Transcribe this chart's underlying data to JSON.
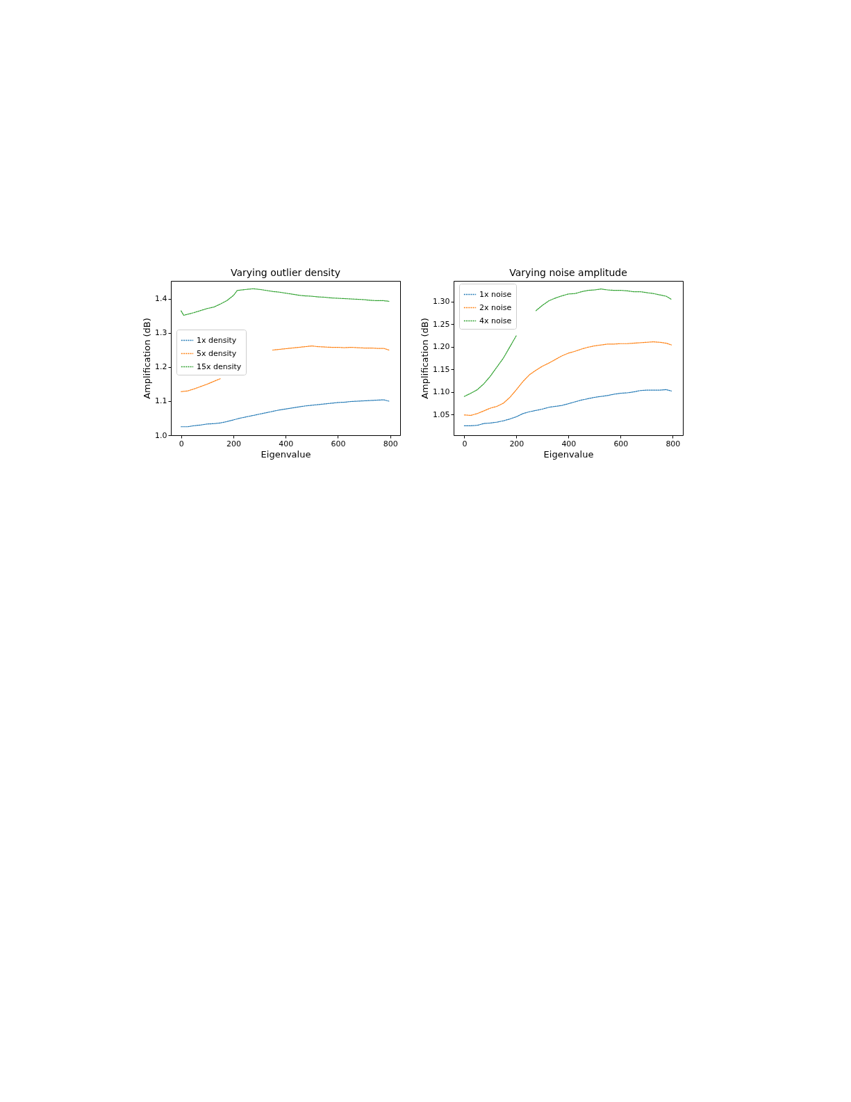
{
  "chart_data": [
    {
      "type": "line",
      "title": "Varying outlier density",
      "xlabel": "Eigenvalue",
      "ylabel": "Amplification (dB)",
      "xlim": [
        -39,
        838
      ],
      "ylim": [
        1.0,
        1.453
      ],
      "xticks": [
        0,
        200,
        400,
        600,
        800
      ],
      "yticks": [
        {
          "value": 1.0,
          "label": "1.0"
        },
        1.1,
        1.2,
        1.3,
        1.4
      ],
      "grid": false,
      "legend": "left",
      "marker": "none",
      "line_style": "dotted",
      "series": [
        {
          "name": "1x density",
          "color": "#1f77b4",
          "x": [
            0,
            25,
            50,
            75,
            100,
            125,
            150,
            175,
            200,
            225,
            250,
            275,
            300,
            325,
            350,
            375,
            400,
            425,
            450,
            475,
            500,
            525,
            550,
            575,
            600,
            625,
            650,
            675,
            700,
            725,
            750,
            775,
            795
          ],
          "values": [
            1.025,
            1.025,
            1.028,
            1.03,
            1.033,
            1.034,
            1.036,
            1.04,
            1.045,
            1.05,
            1.054,
            1.058,
            1.062,
            1.066,
            1.07,
            1.074,
            1.077,
            1.08,
            1.083,
            1.086,
            1.088,
            1.09,
            1.092,
            1.094,
            1.096,
            1.097,
            1.099,
            1.1,
            1.101,
            1.102,
            1.103,
            1.104,
            1.1
          ]
        },
        {
          "name": "5x density",
          "color": "#ff7f0e",
          "x": [
            0,
            25,
            50,
            75,
            100,
            125,
            150,
            175,
            200,
            225,
            250,
            275,
            300,
            325,
            350,
            375,
            400,
            425,
            450,
            475,
            500,
            525,
            550,
            575,
            600,
            625,
            650,
            675,
            700,
            725,
            750,
            775,
            795
          ],
          "values": [
            1.128,
            1.13,
            1.136,
            1.143,
            1.15,
            1.158,
            1.166,
            null,
            null,
            null,
            null,
            null,
            null,
            null,
            1.25,
            1.252,
            1.254,
            1.256,
            1.258,
            1.26,
            1.262,
            1.26,
            1.259,
            1.258,
            1.258,
            1.257,
            1.258,
            1.257,
            1.256,
            1.256,
            1.255,
            1.255,
            1.25
          ]
        },
        {
          "name": "15x density",
          "color": "#2ca02c",
          "x": [
            0,
            10,
            25,
            50,
            75,
            100,
            125,
            150,
            175,
            200,
            215,
            250,
            275,
            300,
            325,
            350,
            375,
            400,
            425,
            450,
            475,
            500,
            525,
            550,
            575,
            600,
            625,
            650,
            675,
            700,
            725,
            750,
            775,
            795
          ],
          "values": [
            1.365,
            1.352,
            1.355,
            1.36,
            1.366,
            1.372,
            1.376,
            1.385,
            1.395,
            1.41,
            1.425,
            1.428,
            1.43,
            1.428,
            1.425,
            1.422,
            1.42,
            1.417,
            1.414,
            1.411,
            1.409,
            1.408,
            1.406,
            1.405,
            1.403,
            1.402,
            1.401,
            1.4,
            1.399,
            1.398,
            1.396,
            1.395,
            1.395,
            1.393
          ]
        }
      ]
    },
    {
      "type": "line",
      "title": "Varying noise amplitude",
      "xlabel": "Eigenvalue",
      "ylabel": "Amplification (dB)",
      "xlim": [
        -41,
        839
      ],
      "ylim": [
        1.004,
        1.346
      ],
      "xticks": [
        0,
        200,
        400,
        600,
        800
      ],
      "yticks": [
        1.05,
        {
          "value": 1.1,
          "label": "1.10"
        },
        1.15,
        {
          "value": 1.2,
          "label": "1.20"
        },
        1.25,
        {
          "value": 1.3,
          "label": "1.30"
        }
      ],
      "grid": false,
      "legend": "top left",
      "marker": "none",
      "line_style": "dotted",
      "series": [
        {
          "name": "1x noise",
          "color": "#1f77b4",
          "x": [
            0,
            25,
            50,
            75,
            100,
            125,
            150,
            175,
            200,
            225,
            250,
            275,
            300,
            325,
            350,
            375,
            400,
            425,
            450,
            475,
            500,
            525,
            550,
            575,
            600,
            625,
            650,
            675,
            700,
            725,
            750,
            775,
            795
          ],
          "values": [
            1.025,
            1.025,
            1.026,
            1.03,
            1.031,
            1.033,
            1.036,
            1.04,
            1.045,
            1.052,
            1.056,
            1.059,
            1.062,
            1.066,
            1.068,
            1.07,
            1.074,
            1.078,
            1.082,
            1.085,
            1.088,
            1.09,
            1.092,
            1.095,
            1.097,
            1.098,
            1.1,
            1.103,
            1.104,
            1.104,
            1.104,
            1.105,
            1.102
          ]
        },
        {
          "name": "2x noise",
          "color": "#ff7f0e",
          "x": [
            0,
            25,
            50,
            75,
            100,
            125,
            150,
            175,
            200,
            225,
            250,
            275,
            300,
            325,
            350,
            375,
            400,
            425,
            450,
            475,
            500,
            525,
            550,
            575,
            600,
            625,
            650,
            675,
            700,
            725,
            750,
            775,
            795
          ],
          "values": [
            1.049,
            1.048,
            1.052,
            1.058,
            1.064,
            1.068,
            1.075,
            1.088,
            1.105,
            1.123,
            1.138,
            1.148,
            1.157,
            1.164,
            1.172,
            1.18,
            1.186,
            1.19,
            1.195,
            1.199,
            1.202,
            1.204,
            1.206,
            1.206,
            1.207,
            1.207,
            1.208,
            1.209,
            1.21,
            1.211,
            1.21,
            1.208,
            1.204
          ]
        },
        {
          "name": "4x noise",
          "color": "#2ca02c",
          "x": [
            0,
            25,
            50,
            75,
            100,
            125,
            150,
            175,
            200,
            225,
            250,
            275,
            300,
            325,
            350,
            375,
            400,
            425,
            450,
            475,
            500,
            525,
            550,
            575,
            600,
            625,
            650,
            675,
            700,
            725,
            750,
            775,
            795
          ],
          "values": [
            1.09,
            1.097,
            1.105,
            1.118,
            1.135,
            1.155,
            1.175,
            1.2,
            1.225,
            null,
            null,
            1.28,
            1.292,
            1.302,
            1.308,
            1.313,
            1.317,
            1.318,
            1.322,
            1.325,
            1.326,
            1.328,
            1.326,
            1.325,
            1.325,
            1.324,
            1.322,
            1.322,
            1.32,
            1.318,
            1.315,
            1.312,
            1.305
          ]
        }
      ]
    }
  ]
}
